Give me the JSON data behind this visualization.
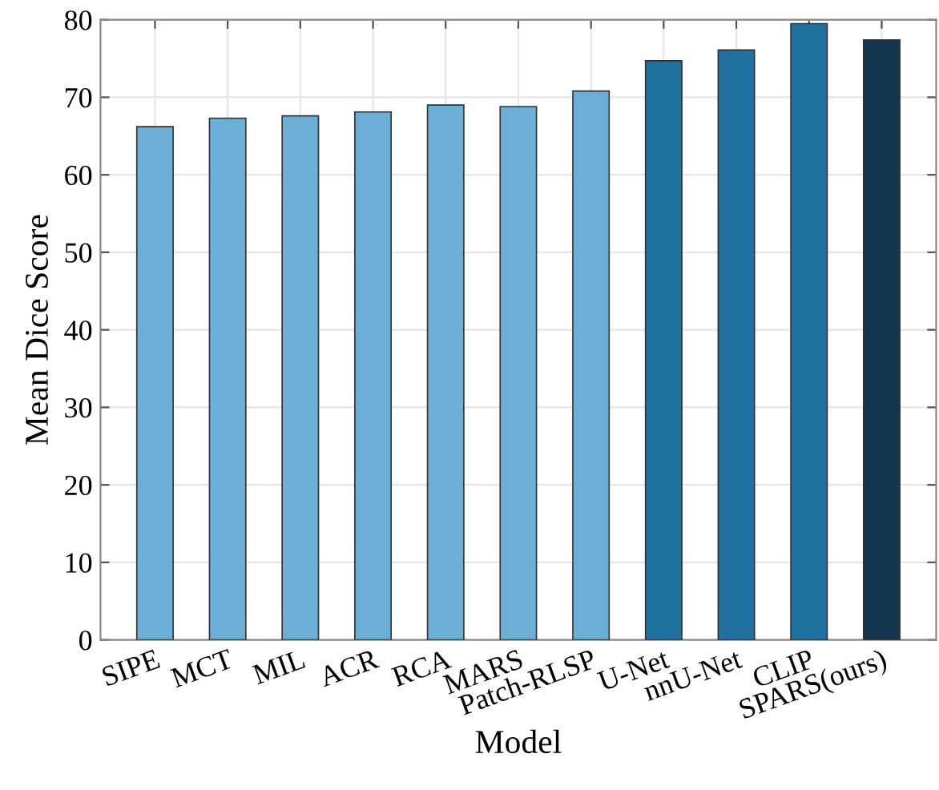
{
  "chart_data": {
    "type": "bar",
    "xlabel": "Model",
    "ylabel": "Mean Dice Score",
    "categories": [
      "SIPE",
      "MCT",
      "MIL",
      "ACR",
      "RCA",
      "MARS",
      "Patch-RLSP",
      "U-Net",
      "nnU-Net",
      "CLIP",
      "SPARS(ours)"
    ],
    "values": [
      66.2,
      67.3,
      67.6,
      68.1,
      69.0,
      68.8,
      70.8,
      74.7,
      76.1,
      79.5,
      77.4
    ],
    "colors": [
      "#6baed6",
      "#6baed6",
      "#6baed6",
      "#6baed6",
      "#6baed6",
      "#6baed6",
      "#6baed6",
      "#2171a0",
      "#2171a0",
      "#2171a0",
      "#14374f"
    ],
    "ylim": [
      0,
      80
    ],
    "yticks": [
      0,
      10,
      20,
      30,
      40,
      50,
      60,
      70,
      80
    ],
    "grid": true
  }
}
